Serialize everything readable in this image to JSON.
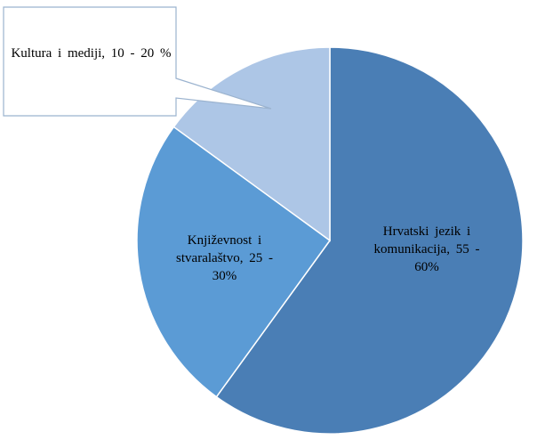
{
  "chart_data": {
    "type": "pie",
    "categories": [
      "Hrvatski jezik i komunikacija, 55 - 60%",
      "Književnost i stvaralaštvo, 25 - 30%",
      "Kultura i mediji, 10 - 20 %"
    ],
    "values": [
      60,
      25,
      15
    ],
    "colors": [
      "#4a7eb5",
      "#5b9bd5",
      "#adc6e6"
    ]
  }
}
